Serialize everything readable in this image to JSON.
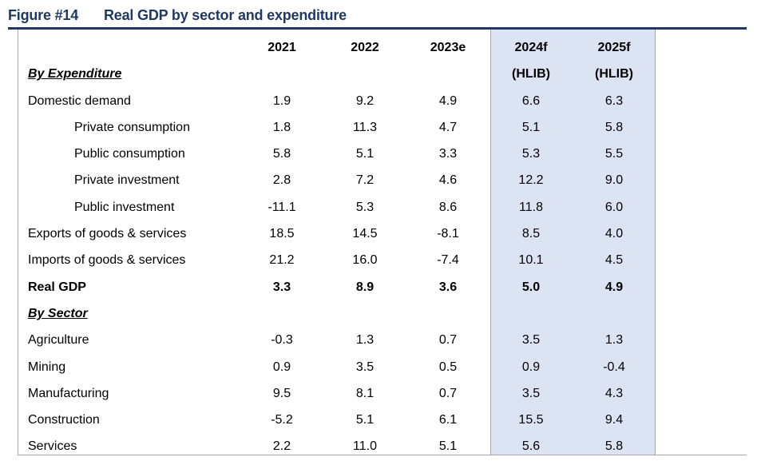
{
  "figure": {
    "number": "Figure #14",
    "title": "Real GDP by sector and expenditure"
  },
  "columns": [
    "2021",
    "2022",
    "2023e",
    "2024f",
    "2025f"
  ],
  "column_subheaders": [
    "",
    "",
    "",
    "(HLIB)",
    "(HLIB)"
  ],
  "sections": {
    "expenditure": "By Expenditure",
    "sector": "By Sector"
  },
  "rows": [
    {
      "label": "Domestic demand",
      "values": [
        "1.9",
        "9.2",
        "4.9",
        "6.6",
        "6.3"
      ]
    },
    {
      "label": "Private consumption",
      "values": [
        "1.8",
        "11.3",
        "4.7",
        "5.1",
        "5.8"
      ]
    },
    {
      "label": "Public consumption",
      "values": [
        "5.8",
        "5.1",
        "3.3",
        "5.3",
        "5.5"
      ]
    },
    {
      "label": "Private investment",
      "values": [
        "2.8",
        "7.2",
        "4.6",
        "12.2",
        "9.0"
      ]
    },
    {
      "label": "Public investment",
      "values": [
        "-11.1",
        "5.3",
        "8.6",
        "11.8",
        "6.0"
      ]
    },
    {
      "label": "Exports of goods & services",
      "values": [
        "18.5",
        "14.5",
        "-8.1",
        "8.5",
        "4.0"
      ]
    },
    {
      "label": "Imports of goods & services",
      "values": [
        "21.2",
        "16.0",
        "-7.4",
        "10.1",
        "4.5"
      ]
    },
    {
      "label": "Real GDP",
      "values": [
        "3.3",
        "8.9",
        "3.6",
        "5.0",
        "4.9"
      ]
    },
    {
      "label": "Agriculture",
      "values": [
        "-0.3",
        "1.3",
        "0.7",
        "3.5",
        "1.3"
      ]
    },
    {
      "label": "Mining",
      "values": [
        "0.9",
        "3.5",
        "0.5",
        "0.9",
        "-0.4"
      ]
    },
    {
      "label": "Manufacturing",
      "values": [
        "9.5",
        "8.1",
        "0.7",
        "3.5",
        "4.3"
      ]
    },
    {
      "label": "Construction",
      "values": [
        "-5.2",
        "5.1",
        "6.1",
        "15.5",
        "9.4"
      ]
    },
    {
      "label": "Services",
      "values": [
        "2.2",
        "11.0",
        "5.1",
        "5.6",
        "5.8"
      ]
    }
  ],
  "colors": {
    "title": "#1f3864",
    "forecast_shade": "#dce3f3"
  }
}
